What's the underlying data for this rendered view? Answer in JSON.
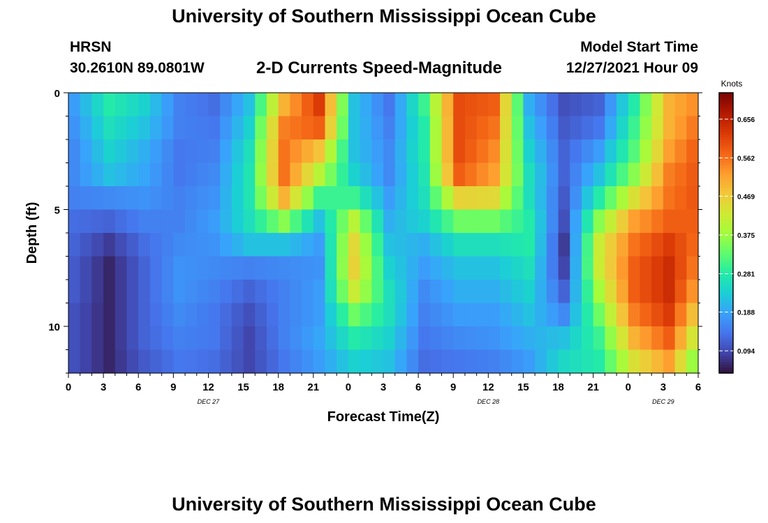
{
  "header": {
    "title": "University of Southern Mississippi Ocean Cube",
    "station": "HRSN",
    "coords": "30.2610N  89.0801W",
    "product": "2-D Currents Speed-Magnitude",
    "model_label": "Model Start Time",
    "model_time": "12/27/2021 Hour 09"
  },
  "footer": {
    "title": "University of Southern Mississippi Ocean Cube"
  },
  "colors": {
    "palette": [
      "#30123b",
      "#4145ab",
      "#4675ed",
      "#39a2fc",
      "#1bcfd4",
      "#24eca6",
      "#61fc6c",
      "#a4fc3b",
      "#d1e834",
      "#f3c63a",
      "#fe9b2d",
      "#f36315",
      "#d93806",
      "#b11901",
      "#7a0402"
    ]
  },
  "chart_data": {
    "type": "heatmap",
    "title": "2-D Currents Speed-Magnitude",
    "xlabel": "Forecast Time(Z)",
    "ylabel": "Depth (ft)",
    "x_tick_labels": [
      "0",
      "3",
      "6",
      "9",
      "12",
      "15",
      "18",
      "21",
      "0",
      "3",
      "6",
      "9",
      "12",
      "15",
      "18",
      "21",
      "0",
      "3",
      "6"
    ],
    "date_labels": [
      {
        "label": "DEC 27",
        "hour": 12
      },
      {
        "label": "DEC 28",
        "hour": 36
      },
      {
        "label": "DEC 29",
        "hour": 51
      }
    ],
    "x_range_hours": [
      0,
      54
    ],
    "y_tick_labels": [
      "0",
      "5",
      "10"
    ],
    "y_tick_values": [
      0,
      5,
      10
    ],
    "depth_range_ft": [
      0,
      12
    ],
    "colorbar": {
      "label": "Knots",
      "tick_labels": [
        "0.656",
        "0.562",
        "0.469",
        "0.375",
        "0.281",
        "0.188",
        "0.094"
      ],
      "tick_values": [
        0.656,
        0.562,
        0.469,
        0.375,
        0.281,
        0.188,
        0.094
      ],
      "range": [
        0.04,
        0.72
      ]
    },
    "depth_rows_ft": [
      0,
      1,
      2,
      3,
      4,
      5,
      6,
      7,
      8,
      9,
      10,
      11
    ],
    "hour_columns_step": 3,
    "values_knots": [
      [
        0.18,
        0.28,
        0.24,
        0.15,
        0.13,
        0.22,
        0.5,
        0.62,
        0.22,
        0.14,
        0.3,
        0.6,
        0.58,
        0.2,
        0.1,
        0.12,
        0.28,
        0.5,
        0.55
      ],
      [
        0.17,
        0.26,
        0.22,
        0.15,
        0.14,
        0.24,
        0.55,
        0.58,
        0.22,
        0.15,
        0.28,
        0.6,
        0.56,
        0.22,
        0.11,
        0.14,
        0.3,
        0.5,
        0.58
      ],
      [
        0.16,
        0.24,
        0.2,
        0.14,
        0.15,
        0.26,
        0.56,
        0.48,
        0.22,
        0.16,
        0.28,
        0.6,
        0.54,
        0.24,
        0.12,
        0.18,
        0.32,
        0.52,
        0.6
      ],
      [
        0.16,
        0.22,
        0.19,
        0.14,
        0.16,
        0.27,
        0.56,
        0.4,
        0.24,
        0.16,
        0.27,
        0.58,
        0.52,
        0.26,
        0.12,
        0.22,
        0.36,
        0.55,
        0.6
      ],
      [
        0.15,
        0.16,
        0.17,
        0.15,
        0.17,
        0.27,
        0.5,
        0.3,
        0.3,
        0.18,
        0.26,
        0.46,
        0.45,
        0.26,
        0.11,
        0.28,
        0.44,
        0.56,
        0.6
      ],
      [
        0.13,
        0.12,
        0.15,
        0.15,
        0.18,
        0.26,
        0.36,
        0.22,
        0.4,
        0.2,
        0.24,
        0.34,
        0.34,
        0.28,
        0.1,
        0.36,
        0.52,
        0.58,
        0.58
      ],
      [
        0.12,
        0.08,
        0.13,
        0.16,
        0.17,
        0.22,
        0.22,
        0.18,
        0.45,
        0.22,
        0.2,
        0.26,
        0.26,
        0.28,
        0.08,
        0.42,
        0.56,
        0.62,
        0.55
      ],
      [
        0.11,
        0.06,
        0.12,
        0.17,
        0.16,
        0.15,
        0.16,
        0.17,
        0.46,
        0.24,
        0.18,
        0.22,
        0.22,
        0.26,
        0.09,
        0.42,
        0.58,
        0.64,
        0.52
      ],
      [
        0.11,
        0.06,
        0.12,
        0.17,
        0.15,
        0.12,
        0.15,
        0.18,
        0.42,
        0.26,
        0.16,
        0.2,
        0.2,
        0.24,
        0.12,
        0.38,
        0.58,
        0.64,
        0.48
      ],
      [
        0.1,
        0.06,
        0.12,
        0.16,
        0.14,
        0.1,
        0.15,
        0.18,
        0.34,
        0.26,
        0.15,
        0.18,
        0.18,
        0.22,
        0.16,
        0.34,
        0.55,
        0.62,
        0.42
      ],
      [
        0.1,
        0.06,
        0.12,
        0.15,
        0.14,
        0.09,
        0.15,
        0.19,
        0.28,
        0.24,
        0.14,
        0.16,
        0.17,
        0.2,
        0.22,
        0.3,
        0.5,
        0.58,
        0.36
      ],
      [
        0.1,
        0.06,
        0.11,
        0.14,
        0.13,
        0.09,
        0.14,
        0.18,
        0.24,
        0.22,
        0.13,
        0.14,
        0.15,
        0.18,
        0.25,
        0.28,
        0.44,
        0.52,
        0.3
      ]
    ]
  }
}
